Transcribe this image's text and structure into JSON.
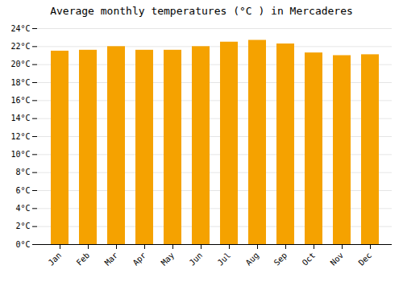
{
  "chart_data": {
    "type": "bar",
    "title": "Average monthly temperatures (°C ) in Mercaderes",
    "categories": [
      "Jan",
      "Feb",
      "Mar",
      "Apr",
      "May",
      "Jun",
      "Jul",
      "Aug",
      "Sep",
      "Oct",
      "Nov",
      "Dec"
    ],
    "values": [
      21.5,
      21.6,
      22.0,
      21.6,
      21.6,
      22.0,
      22.5,
      22.7,
      22.3,
      21.3,
      21.0,
      21.1
    ],
    "color": "#F5A200",
    "ylim": [
      0,
      24
    ],
    "yticks": [
      {
        "value": 0,
        "label": "0°C"
      },
      {
        "value": 2,
        "label": "2°C"
      },
      {
        "value": 4,
        "label": "4°C"
      },
      {
        "value": 6,
        "label": "6°C"
      },
      {
        "value": 8,
        "label": "8°C"
      },
      {
        "value": 10,
        "label": "10°C"
      },
      {
        "value": 12,
        "label": "12°C"
      },
      {
        "value": 14,
        "label": "14°C"
      },
      {
        "value": 16,
        "label": "16°C"
      },
      {
        "value": 18,
        "label": "18°C"
      },
      {
        "value": 20,
        "label": "20°C"
      },
      {
        "value": 22,
        "label": "22°C"
      },
      {
        "value": 24,
        "label": "24°C"
      }
    ],
    "grid": true
  }
}
